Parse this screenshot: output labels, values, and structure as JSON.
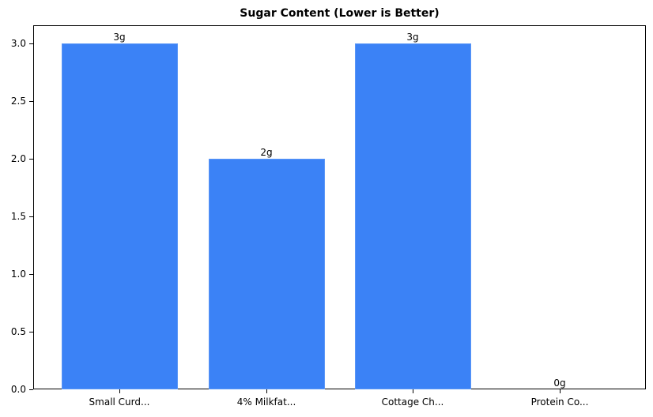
{
  "chart_data": {
    "type": "bar",
    "title": "Sugar Content (Lower is Better)",
    "xlabel": "",
    "ylabel": "",
    "categories": [
      "Small Curd...",
      "4% Milkfat...",
      "Cottage Ch...",
      "Protein Co..."
    ],
    "values": [
      3,
      2,
      3,
      0
    ],
    "value_labels": [
      "3g",
      "2g",
      "3g",
      "0g"
    ],
    "unit": "g",
    "ylim": [
      0,
      3.15
    ],
    "yticks": [
      0.0,
      0.5,
      1.0,
      1.5,
      2.0,
      2.5,
      3.0
    ],
    "ytick_labels": [
      "0.0",
      "0.5",
      "1.0",
      "1.5",
      "2.0",
      "2.5",
      "3.0"
    ],
    "grid": false,
    "legend": null,
    "bar_color": "#3b82f6"
  },
  "labels": {
    "title": "Sugar Content (Lower is Better)"
  }
}
